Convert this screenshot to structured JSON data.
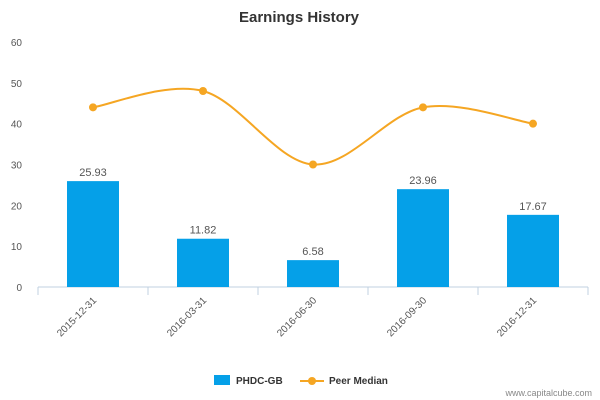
{
  "watermark": "www.capitalcube.com",
  "colors": {
    "bar": "#05a0e8",
    "line": "#f5a623",
    "axis": "#c0d0e0",
    "text": "#555555",
    "title": "#333333"
  },
  "chart_data": {
    "type": "bar",
    "title": "Earnings History",
    "xlabel": "",
    "ylabel": "",
    "ylim": [
      0,
      60
    ],
    "yticks": [
      0,
      10,
      20,
      30,
      40,
      50,
      60
    ],
    "grid": false,
    "legend_position": "bottom",
    "categories": [
      "2015-12-31",
      "2016-03-31",
      "2016-06-30",
      "2016-09-30",
      "2016-12-31"
    ],
    "series": [
      {
        "name": "PHDC-GB",
        "type": "bar",
        "values": [
          25.93,
          11.82,
          6.58,
          23.96,
          17.67
        ],
        "labels": [
          "25.93",
          "11.82",
          "6.58",
          "23.96",
          "17.67"
        ]
      },
      {
        "name": "Peer Median",
        "type": "line",
        "values": [
          44,
          48,
          30,
          44,
          40
        ]
      }
    ]
  }
}
